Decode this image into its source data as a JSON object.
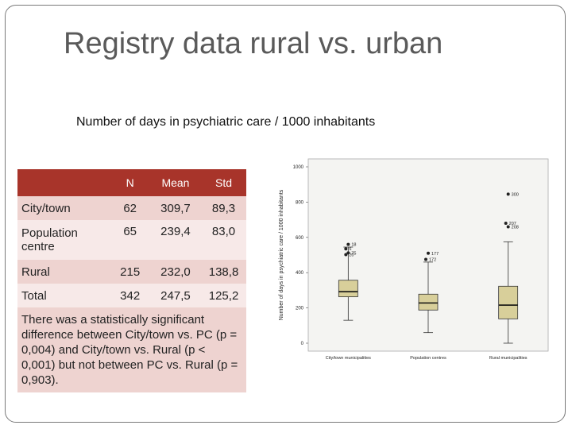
{
  "slide": {
    "title": "Registry data rural vs. urban",
    "subtitle": "Number of days in psychiatric care / 1000 inhabitants"
  },
  "table": {
    "headers": [
      "",
      "N",
      "Mean",
      "Std"
    ],
    "rows": [
      {
        "label": "City/town",
        "n": "62",
        "mean": "309,7",
        "std": "89,3"
      },
      {
        "label": "Population centre",
        "n": "65",
        "mean": "239,4",
        "std": "83,0"
      },
      {
        "label": "Rural",
        "n": "215",
        "mean": "232,0",
        "std": "138,8"
      },
      {
        "label": "Total",
        "n": "342",
        "mean": "247,5",
        "std": "125,2"
      }
    ],
    "note": "There was a statistically significant difference between City/town vs. PC (p = 0,004) and City/town vs. Rural (p < 0,001) but not between PC vs. Rural (p = 0,903)."
  },
  "chart_data": {
    "type": "boxplot",
    "ylabel": "Number of days in psychiatric care / 1000 inhabitants",
    "ylim": [
      0,
      1000
    ],
    "yticks": [
      "1000",
      "800",
      "600",
      "400",
      "200",
      "0"
    ],
    "ytick_values": [
      1000,
      800,
      600,
      400,
      200,
      0
    ],
    "categories": [
      "City/town municipalities",
      "Population centres",
      "Rural municipalities"
    ],
    "boxes": [
      {
        "q1": 263,
        "median": 292,
        "q3": 357,
        "whisker_low": 130,
        "whisker_high": 545,
        "outliers": [
          {
            "value": 560,
            "label": "18"
          },
          {
            "value": 535,
            "label": "6"
          },
          {
            "value": 512,
            "label": "75"
          },
          {
            "value": 502,
            "label": "20"
          }
        ]
      },
      {
        "q1": 188,
        "median": 228,
        "q3": 278,
        "whisker_low": 60,
        "whisker_high": 460,
        "outliers": [
          {
            "value": 510,
            "label": "177"
          },
          {
            "value": 475,
            "label": "172"
          }
        ]
      },
      {
        "q1": 138,
        "median": 216,
        "q3": 323,
        "whisker_low": 0,
        "whisker_high": 575,
        "outliers": [
          {
            "value": 845,
            "label": "300"
          },
          {
            "value": 680,
            "label": "207"
          },
          {
            "value": 660,
            "label": "208"
          }
        ]
      }
    ]
  },
  "colors": {
    "header_bg": "#a8342a",
    "row_dark": "#eed3d0",
    "row_light": "#f7e9e8",
    "box_fill": "#d8cf9a"
  }
}
